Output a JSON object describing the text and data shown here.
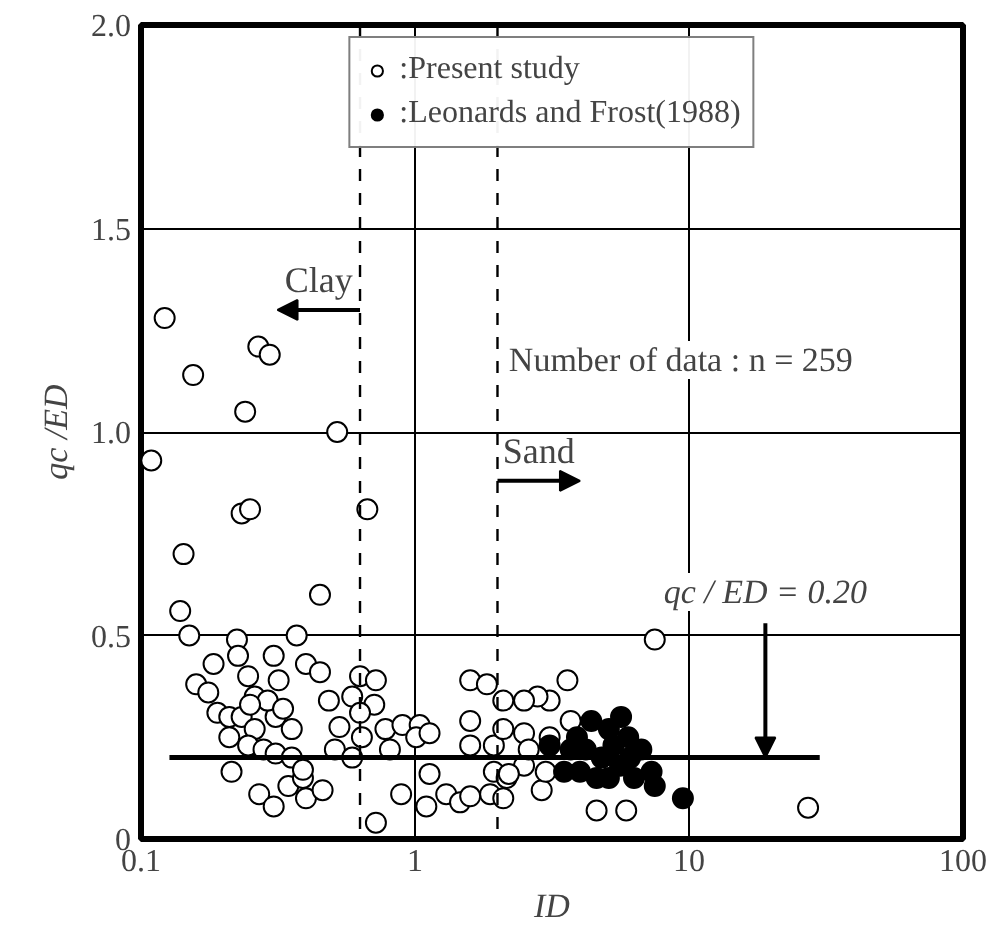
{
  "chart_data": {
    "type": "scatter",
    "xlabel": "ID",
    "ylabel": "qc /ED",
    "log": "x",
    "xlim": [
      0.1,
      100
    ],
    "xticks": [
      0.1,
      1,
      10,
      100
    ],
    "ylim": [
      0,
      2.0
    ],
    "yticks": [
      0,
      0.5,
      {
        "value": 1.0,
        "label": "1.0"
      },
      1.5,
      {
        "value": 2.0,
        "label": "2.0"
      }
    ],
    "grid": true,
    "legend": "top",
    "marker": "circle",
    "series": [
      {
        "name": ":Present study",
        "color": "#ffffff",
        "x": [
          0.122,
          0.268,
          0.295,
          0.155,
          0.24,
          0.52,
          0.109,
          0.233,
          0.25,
          0.67,
          0.143,
          0.45,
          0.139,
          0.15,
          0.224,
          0.37,
          0.184,
          0.159,
          0.226,
          0.246,
          0.305,
          0.318,
          0.4,
          0.45,
          0.63,
          0.72,
          0.485,
          0.59,
          0.71,
          0.19,
          0.21,
          0.233,
          0.26,
          0.31,
          0.355,
          0.51,
          0.59,
          0.78,
          0.9,
          1.04,
          0.81,
          0.214,
          0.27,
          0.305,
          0.345,
          0.39,
          0.4,
          0.46,
          0.72,
          0.89,
          1.1,
          1.3,
          1.13,
          1.46,
          1.59,
          1.88,
          1.59,
          1.83,
          2.1,
          1.59,
          1.59,
          1.94,
          1.94,
          2.16,
          0.26,
          0.29,
          0.33,
          0.21,
          0.246,
          0.28,
          0.31,
          0.355,
          0.39,
          0.53,
          0.63,
          0.64,
          1.01,
          1.13,
          0.176,
          0.25,
          7.5,
          27.2,
          4.6,
          5.9,
          3.6,
          3.1,
          3.7,
          2.8,
          2.5,
          2.9,
          2.1,
          2.5,
          2.2,
          2.5,
          2.1,
          3.1,
          2.6,
          3.0
        ],
        "values": [
          1.28,
          1.21,
          1.19,
          1.14,
          1.05,
          1.0,
          0.93,
          0.8,
          0.81,
          0.81,
          0.7,
          0.6,
          0.56,
          0.5,
          0.49,
          0.5,
          0.43,
          0.38,
          0.45,
          0.4,
          0.45,
          0.39,
          0.43,
          0.41,
          0.4,
          0.39,
          0.34,
          0.35,
          0.33,
          0.31,
          0.3,
          0.3,
          0.27,
          0.3,
          0.27,
          0.22,
          0.2,
          0.27,
          0.28,
          0.28,
          0.22,
          0.165,
          0.11,
          0.08,
          0.13,
          0.15,
          0.1,
          0.12,
          0.04,
          0.11,
          0.08,
          0.11,
          0.16,
          0.09,
          0.105,
          0.11,
          0.39,
          0.38,
          0.34,
          0.29,
          0.23,
          0.23,
          0.165,
          0.15,
          0.35,
          0.34,
          0.32,
          0.25,
          0.23,
          0.22,
          0.21,
          0.2,
          0.17,
          0.275,
          0.31,
          0.25,
          0.25,
          0.26,
          0.36,
          0.33,
          0.49,
          0.077,
          0.07,
          0.07,
          0.39,
          0.34,
          0.29,
          0.35,
          0.34,
          0.12,
          0.1,
          0.18,
          0.16,
          0.26,
          0.27,
          0.25,
          0.22,
          0.165
        ]
      },
      {
        "name": ":Leonards and Frost(1988)",
        "color": "#000000",
        "x": [
          5.65,
          9.5,
          3.1,
          3.5,
          3.9,
          4.2,
          4.8,
          5.1,
          5.3,
          5.6,
          6.0,
          6.3,
          6.7,
          7.3,
          7.5,
          3.7,
          4.0,
          4.6,
          6.1,
          4.4,
          5.1
        ],
        "values": [
          0.3,
          0.1,
          0.23,
          0.165,
          0.25,
          0.22,
          0.2,
          0.15,
          0.23,
          0.18,
          0.25,
          0.15,
          0.22,
          0.165,
          0.13,
          0.22,
          0.165,
          0.15,
          0.2,
          0.29,
          0.27
        ]
      },
      {
        "type": "line",
        "color": "#000000",
        "marker": "none",
        "x": [
          0.127,
          30
        ],
        "values": [
          0.2,
          0.2
        ]
      }
    ],
    "ref_lines": [
      {
        "axis": "x",
        "value": 0.63,
        "line_style": "dashed",
        "color": "#000000"
      },
      {
        "axis": "x",
        "value": 2.0,
        "line_style": "dashed",
        "color": "#000000"
      }
    ],
    "annotations": [
      "Clay",
      "Sand",
      {
        "text": "qc / ED = 0.20",
        "x": 19,
        "y": 0.2
      },
      "Number of data : n = 259"
    ]
  }
}
